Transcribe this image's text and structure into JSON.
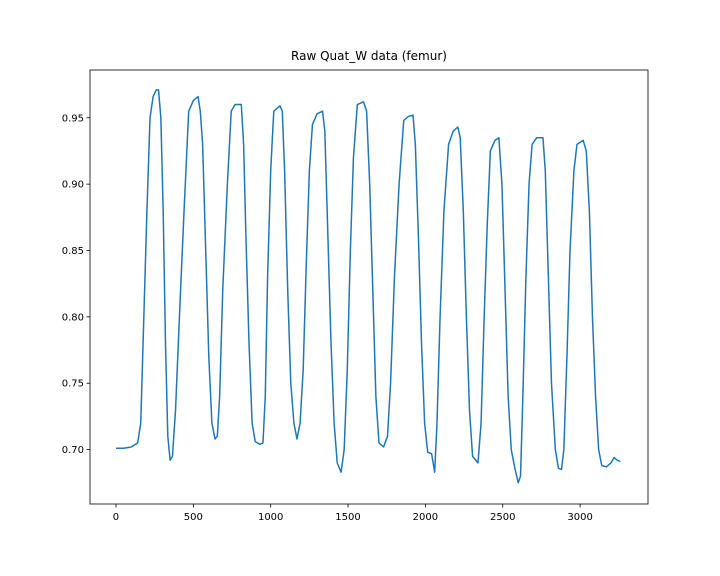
{
  "chart_data": {
    "type": "line",
    "title": "Raw Quat_W data (femur)",
    "color": "#1f77b4",
    "x": [
      0,
      50,
      100,
      140,
      160,
      180,
      200,
      220,
      240,
      260,
      275,
      290,
      305,
      320,
      335,
      350,
      365,
      385,
      410,
      440,
      470,
      500,
      530,
      545,
      560,
      580,
      600,
      620,
      640,
      655,
      670,
      690,
      720,
      745,
      770,
      810,
      825,
      840,
      860,
      880,
      900,
      930,
      950,
      965,
      980,
      1000,
      1020,
      1060,
      1075,
      1090,
      1110,
      1130,
      1150,
      1170,
      1190,
      1210,
      1230,
      1250,
      1270,
      1300,
      1335,
      1350,
      1370,
      1390,
      1410,
      1430,
      1455,
      1475,
      1495,
      1515,
      1535,
      1560,
      1600,
      1620,
      1640,
      1660,
      1680,
      1700,
      1730,
      1755,
      1775,
      1800,
      1830,
      1860,
      1890,
      1920,
      1935,
      1955,
      1975,
      1995,
      2015,
      2040,
      2060,
      2075,
      2095,
      2120,
      2150,
      2180,
      2210,
      2225,
      2245,
      2265,
      2285,
      2305,
      2340,
      2360,
      2380,
      2400,
      2420,
      2450,
      2475,
      2495,
      2515,
      2535,
      2555,
      2580,
      2600,
      2615,
      2630,
      2650,
      2670,
      2690,
      2720,
      2760,
      2775,
      2795,
      2815,
      2840,
      2860,
      2880,
      2895,
      2915,
      2935,
      2960,
      2980,
      3020,
      3040,
      3060,
      3080,
      3100,
      3120,
      3140,
      3170,
      3200,
      3220,
      3240,
      3260
    ],
    "values": [
      0.701,
      0.701,
      0.702,
      0.705,
      0.72,
      0.8,
      0.88,
      0.95,
      0.966,
      0.971,
      0.971,
      0.95,
      0.88,
      0.78,
      0.71,
      0.692,
      0.695,
      0.73,
      0.8,
      0.88,
      0.955,
      0.963,
      0.966,
      0.955,
      0.93,
      0.85,
      0.77,
      0.72,
      0.708,
      0.71,
      0.74,
      0.82,
      0.9,
      0.955,
      0.96,
      0.96,
      0.93,
      0.86,
      0.78,
      0.72,
      0.706,
      0.704,
      0.705,
      0.74,
      0.83,
      0.91,
      0.955,
      0.959,
      0.955,
      0.91,
      0.82,
      0.75,
      0.72,
      0.708,
      0.72,
      0.76,
      0.84,
      0.91,
      0.945,
      0.953,
      0.955,
      0.94,
      0.86,
      0.78,
      0.72,
      0.69,
      0.683,
      0.7,
      0.76,
      0.85,
      0.92,
      0.96,
      0.962,
      0.955,
      0.9,
      0.82,
      0.74,
      0.705,
      0.702,
      0.71,
      0.75,
      0.83,
      0.9,
      0.948,
      0.951,
      0.952,
      0.93,
      0.86,
      0.78,
      0.72,
      0.698,
      0.697,
      0.683,
      0.72,
      0.8,
      0.88,
      0.93,
      0.94,
      0.943,
      0.935,
      0.88,
      0.8,
      0.73,
      0.695,
      0.69,
      0.72,
      0.8,
      0.87,
      0.925,
      0.933,
      0.935,
      0.9,
      0.82,
      0.74,
      0.7,
      0.685,
      0.675,
      0.68,
      0.74,
      0.83,
      0.9,
      0.93,
      0.935,
      0.935,
      0.91,
      0.83,
      0.75,
      0.7,
      0.686,
      0.685,
      0.7,
      0.77,
      0.85,
      0.91,
      0.93,
      0.933,
      0.925,
      0.88,
      0.8,
      0.74,
      0.7,
      0.688,
      0.687,
      0.69,
      0.694,
      0.692,
      0.691
    ],
    "xlim": [
      -168,
      3439
    ],
    "xticks": [
      0,
      500,
      1000,
      1500,
      2000,
      2500,
      3000
    ],
    "ylim": [
      0.659,
      0.986
    ],
    "yticks": [
      {
        "value": 0.7,
        "label": "0.70"
      },
      0.75,
      {
        "value": 0.8,
        "label": "0.80"
      },
      0.85,
      {
        "value": 0.9,
        "label": "0.90"
      },
      0.95
    ]
  }
}
